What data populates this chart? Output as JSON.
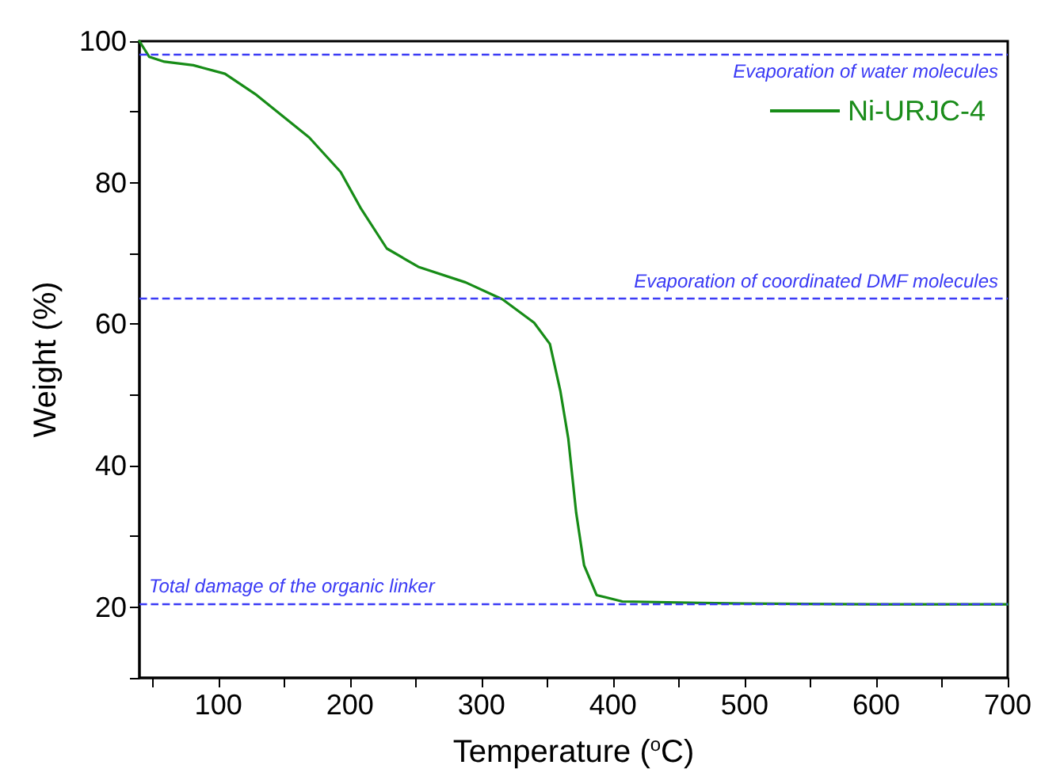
{
  "chart_data": {
    "type": "line",
    "xlabel": "Temperature ($^{o}$C)",
    "ylabel": "Weight (%)",
    "x": [
      40,
      47.4,
      59,
      81,
      105,
      129,
      149,
      169,
      193,
      208.5,
      228,
      252,
      288,
      316,
      340,
      352,
      360,
      366,
      372,
      378,
      387.5,
      407,
      467,
      500,
      600,
      700
    ],
    "series": [
      {
        "name": "Ni-URJC-4",
        "color": "#178c17",
        "values": [
          100,
          97.8,
          97.1,
          96.6,
          95.4,
          92.4,
          89.4,
          86.4,
          81.5,
          76.3,
          70.7,
          68.1,
          65.9,
          63.5,
          60.2,
          57.2,
          50.5,
          43.8,
          33.3,
          25.9,
          21.7,
          20.8,
          20.6,
          20.5,
          20.4,
          20.4
        ]
      }
    ],
    "xlim": [
      40,
      700
    ],
    "xticks": [
      {
        "value": 50,
        "label": null
      },
      100,
      {
        "value": 150,
        "label": null
      },
      200,
      {
        "value": 250,
        "label": null
      },
      300,
      {
        "value": 350,
        "label": null
      },
      400,
      {
        "value": 450,
        "label": null
      },
      500,
      {
        "value": 550,
        "label": null
      },
      600,
      {
        "value": 650,
        "label": null
      },
      700
    ],
    "ylim": [
      10,
      100
    ],
    "yticks": [
      {
        "value": 10,
        "label": null
      },
      20,
      {
        "value": 30,
        "label": null
      },
      40,
      {
        "value": 50,
        "label": null
      },
      60,
      {
        "value": 70,
        "label": null
      },
      80,
      {
        "value": 90,
        "label": null
      },
      100
    ],
    "ref_lines": [
      {
        "axis": "y",
        "value": 98.2,
        "label": "Evaporation of water molecules",
        "color": "#3b3bf5",
        "line_style": "dashed"
      },
      {
        "axis": "y",
        "value": 63.6,
        "label": "Evaporation of coordinated DMF molecules",
        "color": "#3b3bf5",
        "line_style": "dashed"
      },
      {
        "axis": "y",
        "value": 20.5,
        "label": "Total damage of the organic linker",
        "color": "#3b3bf5",
        "line_style": "dashed"
      }
    ],
    "grid": false,
    "legend": "top right",
    "marker": "none",
    "line_style": "solid"
  }
}
